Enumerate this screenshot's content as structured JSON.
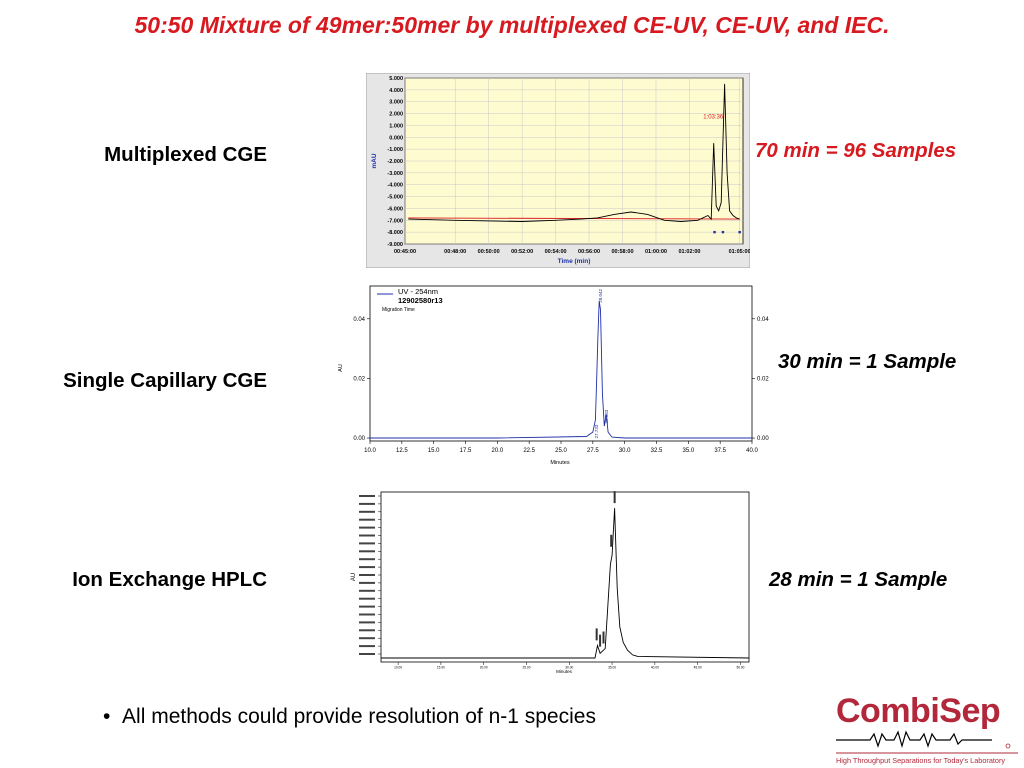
{
  "slide": {
    "title": "50:50 Mixture of 49mer:50mer by multiplexed CE-UV, CE-UV, and IEC.",
    "bullet": "All methods could provide resolution of n-1 species"
  },
  "rows": [
    {
      "method": "Multiplexed CGE",
      "rate": "70 min = 96 Samples"
    },
    {
      "method": "Single Capillary CGE",
      "rate": "30 min = 1 Sample"
    },
    {
      "method": "Ion Exchange HPLC",
      "rate": "28 min = 1 Sample"
    }
  ],
  "logo": {
    "name": "CombiSep",
    "tagline": "High Throughput Separations for Today's Laboratory",
    "color": "#b2283a"
  },
  "colors": {
    "title": "#d71920",
    "trace_black": "#000000",
    "trace_blue": "#1f2fa8",
    "baseline_red": "#d71920",
    "plot_bg_yellow": "#fffbd0"
  },
  "chart_data": [
    {
      "type": "line",
      "name": "multiplexed-cge",
      "ylabel": "mAU",
      "xlabel": "Time (min)",
      "x_ticks": [
        "00:45:00",
        "00:48:00",
        "00:50:00",
        "00:52:00",
        "00:54:00",
        "00:56:00",
        "00:58:00",
        "01:00:00",
        "01:02:00",
        "01:05:00"
      ],
      "y_ticks": [
        "5.000",
        "4.000",
        "3.000",
        "2.000",
        "1.000",
        "0.000",
        "-1.000",
        "-2.000",
        "-3.000",
        "-4.000",
        "-5.000",
        "-6.000",
        "-7.000",
        "-8.000",
        "-9.000"
      ],
      "xlim": [
        45,
        65.2
      ],
      "ylim": [
        -9,
        5
      ],
      "annotation": "1:03:36",
      "grid": true,
      "series": [
        {
          "x": [
            45.2,
            48,
            52,
            54,
            55.5,
            56.5,
            57.5,
            58.5,
            59.5,
            60.5,
            61.5,
            62.5,
            63.1,
            63.3,
            63.45,
            63.6,
            63.75,
            63.9,
            64.1,
            64.25,
            64.4,
            64.6,
            64.8,
            65.0
          ],
          "y": [
            -6.9,
            -7.0,
            -7.1,
            -7.0,
            -6.9,
            -6.8,
            -6.5,
            -6.3,
            -6.5,
            -7.0,
            -7.1,
            -7.0,
            -6.6,
            -6.9,
            -0.5,
            -5.8,
            -6.2,
            -5.5,
            4.5,
            -3.0,
            -6.2,
            -6.6,
            -6.8,
            -6.9
          ]
        },
        {
          "x": [
            45.2,
            65.0
          ],
          "y": [
            -6.8,
            -6.9
          ]
        }
      ],
      "markers_x": [
        63.5,
        64.0,
        65.0
      ]
    },
    {
      "type": "line",
      "name": "single-capillary-cge",
      "legend": [
        "UV - 254nm",
        "12902580r13"
      ],
      "subtitle": "Migration Time",
      "ylabel": "AU",
      "xlabel": "Minutes",
      "x_ticks": [
        "10.0",
        "12.5",
        "15.0",
        "17.5",
        "20.0",
        "22.5",
        "25.0",
        "27.5",
        "30.0",
        "32.5",
        "35.0",
        "37.5",
        "40.0"
      ],
      "y_ticks": [
        "0.00",
        "0.02",
        "0.04"
      ],
      "xlim": [
        10,
        40
      ],
      "ylim": [
        -0.001,
        0.051
      ],
      "peak_labels": [
        "28.042",
        "27.733",
        "28.533"
      ],
      "series": [
        {
          "x": [
            10,
            20,
            27.0,
            27.5,
            27.7,
            27.8,
            27.9,
            28.0,
            28.1,
            28.25,
            28.4,
            28.55,
            28.7,
            29.0,
            30,
            40
          ],
          "y": [
            0.0,
            0.0,
            0.0005,
            0.002,
            0.006,
            0.02,
            0.034,
            0.046,
            0.043,
            0.015,
            0.004,
            0.008,
            0.002,
            0.0003,
            0.0,
            0.0
          ]
        }
      ]
    },
    {
      "type": "line",
      "name": "ion-exchange-hplc",
      "ylabel": "AU",
      "xlabel": "Minutes",
      "x_ticks": [
        "10.00",
        "15.00",
        "20.00",
        "25.00",
        "30.00",
        "35.00",
        "40.00",
        "45.00",
        "50.00"
      ],
      "xlim": [
        8,
        51
      ],
      "ylim": [
        0,
        1
      ],
      "series": [
        {
          "x": [
            8,
            20,
            33,
            33.3,
            33.6,
            34.2,
            34.8,
            35.0,
            35.3,
            35.6,
            35.9,
            36.3,
            36.8,
            37.4,
            38,
            51
          ],
          "y": [
            0.0,
            0.0,
            0.0,
            0.08,
            0.03,
            0.06,
            0.6,
            0.66,
            0.96,
            0.45,
            0.2,
            0.1,
            0.05,
            0.02,
            0.01,
            0.0
          ]
        }
      ]
    }
  ]
}
